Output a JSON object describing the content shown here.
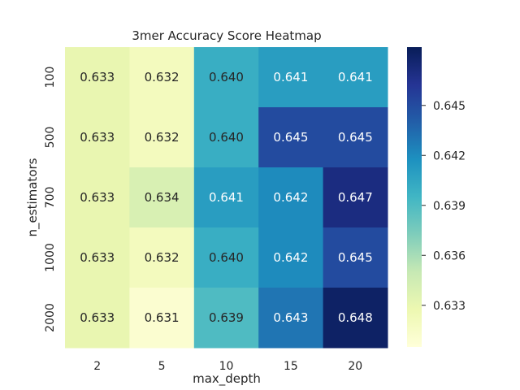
{
  "chart_data": {
    "type": "heatmap",
    "title": "3mer Accuracy Score Heatmap",
    "xlabel": "max_depth",
    "ylabel": "n_estimators",
    "x_categories": [
      "2",
      "5",
      "10",
      "15",
      "20"
    ],
    "y_categories": [
      "100",
      "500",
      "700",
      "1000",
      "2000"
    ],
    "values": [
      [
        0.633,
        0.632,
        0.64,
        0.641,
        0.641
      ],
      [
        0.633,
        0.632,
        0.64,
        0.645,
        0.645
      ],
      [
        0.633,
        0.634,
        0.641,
        0.642,
        0.647
      ],
      [
        0.633,
        0.632,
        0.64,
        0.642,
        0.645
      ],
      [
        0.633,
        0.631,
        0.639,
        0.643,
        0.648
      ]
    ],
    "cell_labels": [
      [
        "0.633",
        "0.632",
        "0.640",
        "0.641",
        "0.641"
      ],
      [
        "0.633",
        "0.632",
        "0.640",
        "0.645",
        "0.645"
      ],
      [
        "0.633",
        "0.634",
        "0.641",
        "0.642",
        "0.647"
      ],
      [
        "0.633",
        "0.632",
        "0.640",
        "0.642",
        "0.645"
      ],
      [
        "0.633",
        "0.631",
        "0.639",
        "0.643",
        "0.648"
      ]
    ],
    "colormap": "YlGnBu",
    "color_range": [
      0.6305,
      0.6485
    ],
    "colorbar_ticks": [
      0.633,
      0.636,
      0.639,
      0.642,
      0.645
    ],
    "colorbar_tick_labels": [
      "0.633",
      "0.636",
      "0.639",
      "0.642",
      "0.645"
    ],
    "grid": false
  }
}
